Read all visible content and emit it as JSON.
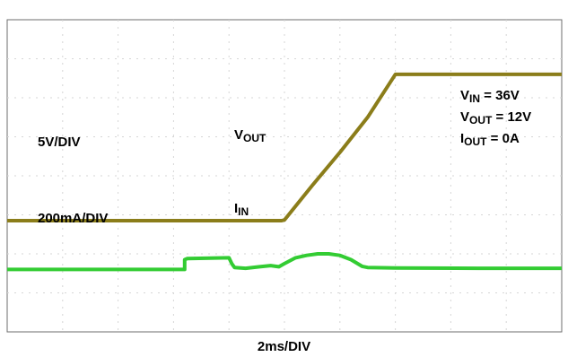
{
  "chart_data": {
    "type": "line",
    "title": "",
    "xlabel": "2ms/DIV",
    "x_divisions": 10,
    "y_divisions": 8,
    "grid": true,
    "grid_style": "dotted",
    "series": [
      {
        "name": "V_OUT",
        "color": "#8b7d1a",
        "scale_text": "5V/DIV",
        "x": [
          0.0,
          4.95,
          5.0,
          5.5,
          6.0,
          6.5,
          7.0,
          8.5,
          10.0
        ],
        "y": [
          -1.15,
          -1.15,
          -1.13,
          -0.25,
          0.6,
          1.5,
          2.6,
          2.6,
          2.6
        ]
      },
      {
        "name": "I_IN",
        "color": "#33cc33",
        "scale_text": "200mA/DIV",
        "x": [
          0.0,
          3.2,
          3.2,
          3.25,
          4.0,
          4.05,
          4.1,
          4.3,
          4.55,
          4.75,
          4.9,
          5.0,
          5.2,
          5.4,
          5.6,
          5.8,
          6.0,
          6.2,
          6.4,
          6.5,
          7.0,
          8.5,
          10.0
        ],
        "y": [
          -2.4,
          -2.4,
          -2.15,
          -2.12,
          -2.1,
          -2.25,
          -2.35,
          -2.37,
          -2.33,
          -2.3,
          -2.33,
          -2.25,
          -2.1,
          -2.04,
          -2.0,
          -2.0,
          -2.04,
          -2.15,
          -2.32,
          -2.35,
          -2.36,
          -2.37,
          -2.37
        ]
      }
    ]
  },
  "labels": {
    "vout_scale": "5V/DIV",
    "iin_scale": "200mA/DIV",
    "vout_trace": {
      "main": "V",
      "sub": "OUT"
    },
    "iin_trace": {
      "main": "I",
      "sub": "IN"
    },
    "conditions": [
      {
        "main": "V",
        "sub": "IN",
        "rest": " = 36V"
      },
      {
        "main": "V",
        "sub": "OUT",
        "rest": " = 12V"
      },
      {
        "main": "I",
        "sub": "OUT",
        "rest": " = 0A"
      }
    ]
  }
}
